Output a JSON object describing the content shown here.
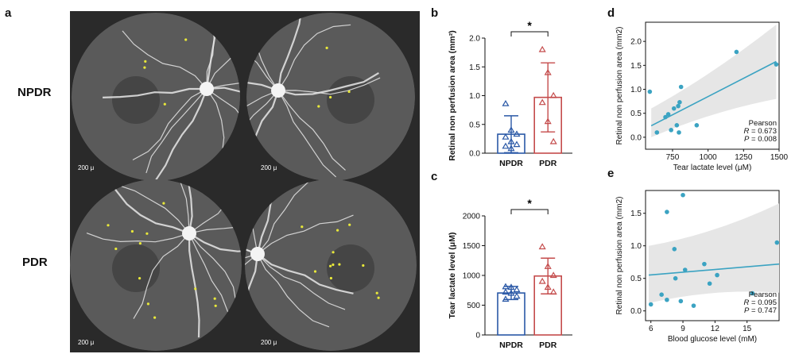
{
  "panel_a": {
    "letter": "a",
    "row_labels": [
      "NPDR",
      "PDR"
    ],
    "scale_labels": [
      "200 μ",
      "200 μ",
      "200 μ",
      "200 μ"
    ],
    "colors": {
      "background": "#2a2a2a",
      "fundus": "#5a5a5a",
      "vessel": "#e8e8e8",
      "marker": "#e8e83a"
    }
  },
  "panel_b": {
    "letter": "b",
    "significance": "*",
    "chart_data": {
      "type": "bar",
      "categories": [
        "NPDR",
        "PDR"
      ],
      "values": [
        0.33,
        0.97
      ],
      "error": [
        0.32,
        0.6
      ],
      "points": [
        [
          0.86,
          0.4,
          0.33,
          0.28,
          0.2,
          0.15,
          0.12,
          0.08
        ],
        [
          1.8,
          1.4,
          1.0,
          0.88,
          0.55,
          0.2
        ]
      ],
      "xlabel": "",
      "ylabel": "Retinal non perfusion area (mm²)",
      "ylim": [
        0,
        2.0
      ],
      "yticks": [
        "0.0",
        "0.5",
        "1.0",
        "1.5",
        "2.0"
      ],
      "colors": [
        "#2a58a6",
        "#c44b4b"
      ]
    }
  },
  "panel_c": {
    "letter": "c",
    "significance": "*",
    "chart_data": {
      "type": "bar",
      "categories": [
        "NPDR",
        "PDR"
      ],
      "values": [
        705,
        990
      ],
      "error": [
        110,
        300
      ],
      "points": [
        [
          810,
          800,
          760,
          720,
          700,
          650,
          600
        ],
        [
          1480,
          1150,
          1000,
          900,
          800,
          720
        ]
      ],
      "xlabel": "",
      "ylabel": "Tear lactate level (μM)",
      "ylim": [
        0,
        2000
      ],
      "yticks": [
        "0",
        "500",
        "1000",
        "1500",
        "2000"
      ],
      "colors": [
        "#2a58a6",
        "#c44b4b"
      ]
    }
  },
  "panel_d": {
    "letter": "d",
    "chart_data": {
      "type": "scatter",
      "x": [
        590,
        640,
        700,
        720,
        740,
        760,
        780,
        790,
        795,
        800,
        810,
        920,
        1200,
        1480
      ],
      "y": [
        0.95,
        0.1,
        0.42,
        0.48,
        0.15,
        0.6,
        0.25,
        0.65,
        0.1,
        0.73,
        1.05,
        0.25,
        1.78,
        1.52
      ],
      "fit": {
        "x": [
          600,
          1480
        ],
        "y": [
          0.24,
          1.58
        ],
        "band_lower": [
          0.0,
          0.8
        ],
        "band_upper": [
          0.6,
          2.35
        ]
      },
      "xlabel": "Tear lactate level (μM)",
      "ylabel": "Retinal non perfusion area (mm2)",
      "xlim": [
        560,
        1500
      ],
      "ylim": [
        -0.25,
        2.4
      ],
      "xticks": [
        "750",
        "1000",
        "1250",
        "1500"
      ],
      "yticks": [
        "0.0",
        "0.5",
        "1.0",
        "1.5",
        "2.0"
      ],
      "stats": [
        "Pearson",
        "R = 0.673",
        "P = 0.008"
      ],
      "colors": {
        "points": "#3ba3c2",
        "line": "#3ba3c2",
        "band": "#e6e6e6"
      }
    }
  },
  "panel_e": {
    "letter": "e",
    "chart_data": {
      "type": "scatter",
      "x": [
        6.0,
        7.0,
        7.5,
        7.5,
        8.2,
        8.3,
        8.8,
        9.0,
        9.2,
        10.0,
        11.0,
        11.5,
        12.2,
        15.5,
        17.8
      ],
      "y": [
        0.1,
        0.25,
        0.17,
        1.52,
        0.95,
        0.5,
        0.15,
        1.78,
        0.63,
        0.08,
        0.72,
        0.42,
        0.55,
        0.27,
        1.05
      ],
      "fit": {
        "x": [
          5.8,
          18.0
        ],
        "y": [
          0.55,
          0.72
        ],
        "band_lower": [
          0.12,
          0.28
        ],
        "band_upper": [
          1.0,
          1.65
        ]
      },
      "xlabel": "Blood glucose level (mM)",
      "ylabel": "Retinal non perfusion area (mm2)",
      "xlim": [
        5.5,
        18.0
      ],
      "ylim": [
        -0.15,
        1.85
      ],
      "xticks": [
        "6",
        "9",
        "12",
        "15"
      ],
      "yticks": [
        "0.0",
        "0.5",
        "1.0",
        "1.5"
      ],
      "stats": [
        "Pearson",
        "R = 0.095",
        "P = 0.747"
      ],
      "colors": {
        "points": "#3ba3c2",
        "line": "#3ba3c2",
        "band": "#e6e6e6"
      }
    }
  }
}
